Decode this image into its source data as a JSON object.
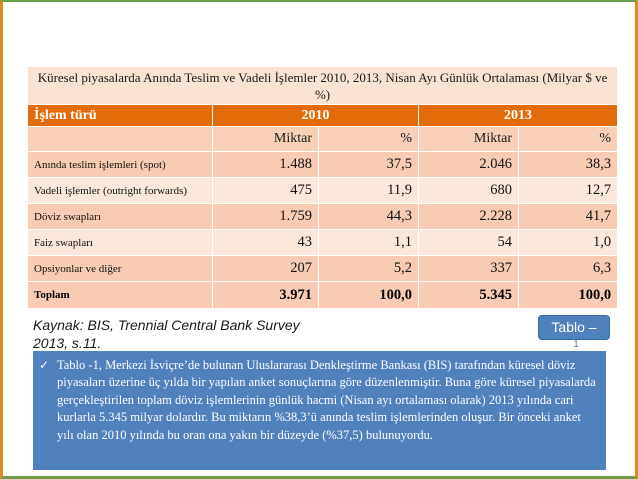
{
  "table": {
    "caption": "Küresel piyasalarda Anında Teslim ve Vadeli İşlemler 2010, 2013, Nisan Ayı Günlük Ortalaması (Milyar $ ve %)",
    "header": {
      "type_label": "İşlem türü",
      "year_2010": "2010",
      "year_2013": "2013"
    },
    "subheader": {
      "miktar_2010": "Miktar",
      "pct_2010": "%",
      "miktar_2013": "Miktar",
      "pct_2013": "%"
    },
    "rows": [
      {
        "label": "Anında teslim işlemleri (spot)",
        "m2010": "1.488",
        "p2010": "37,5",
        "m2013": "2.046",
        "p2013": "38,3"
      },
      {
        "label": "Vadeli işlemler (outright forwards)",
        "m2010": "475",
        "p2010": "11,9",
        "m2013": "680",
        "p2013": "12,7"
      },
      {
        "label": "Döviz swapları",
        "m2010": "1.759",
        "p2010": "44,3",
        "m2013": "2.228",
        "p2013": "41,7"
      },
      {
        "label": "Faiz swapları",
        "m2010": "43",
        "p2010": "1,1",
        "m2013": "54",
        "p2013": "1,0"
      },
      {
        "label": "Opsiyonlar ve diğer",
        "m2010": "207",
        "p2010": "5,2",
        "m2013": "337",
        "p2013": "6,3"
      }
    ],
    "total": {
      "label": "Toplam",
      "m2010": "3.971",
      "p2010": "100,0",
      "m2013": "5.345",
      "p2013": "100,0"
    }
  },
  "source": {
    "line1": "Kaynak: BIS, Trennial Central Bank Survey",
    "line2": "2013, s.11."
  },
  "badge": {
    "label": "Tablo –",
    "tail": "1"
  },
  "note": {
    "icon": "check-icon",
    "text": "Tablo -1, Merkezi İsviçre’de bulunan Uluslararası Denkleştirme Bankası (BIS) tarafından küresel döviz piyasaları üzerine üç yılda bir yapılan anket sonuçlarına göre düzenlenmiştir. Buna göre küresel piyasalarda gerçekleştirilen toplam döviz işlemlerinin günlük hacmi (Nisan ayı ortalaması olarak) 2013 yılında cari kurlarla 5.345 milyar dolardır. Bu miktarın %38,3’ü anında teslim işlemlerinden oluşur. Bir önceki anket yılı olan 2010 yılında bu oran ona yakın bir düzeyde (%37,5) bulunuyordu."
  },
  "colors": {
    "header_orange": "#e36c0a",
    "note_blue": "#4f81bd",
    "frame_green": "#6aa04a",
    "frame_orange": "#e08a1c"
  }
}
